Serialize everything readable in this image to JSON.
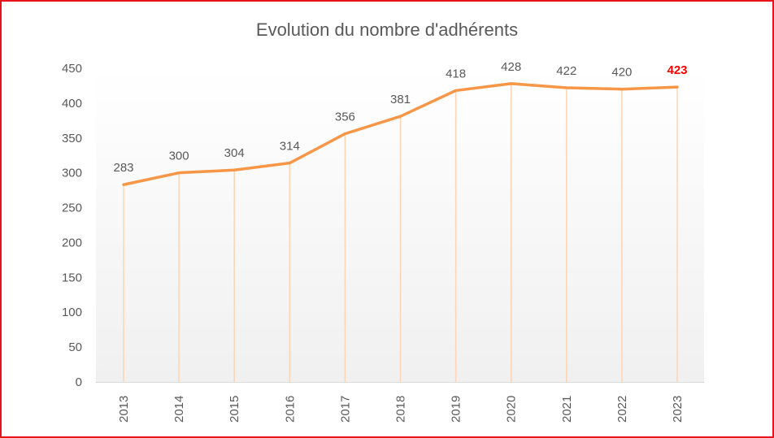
{
  "chart_data": {
    "type": "line",
    "title": "Evolution du nombre d'adhérents",
    "xlabel": "",
    "ylabel": "",
    "categories": [
      "2013",
      "2014",
      "2015",
      "2016",
      "2017",
      "2018",
      "2019",
      "2020",
      "2021",
      "2022",
      "2023"
    ],
    "values": [
      283,
      300,
      304,
      314,
      356,
      381,
      418,
      428,
      422,
      420,
      423
    ],
    "ylim": [
      0,
      450
    ],
    "yticks": [
      "0",
      "50",
      "100",
      "150",
      "200",
      "250",
      "300",
      "350",
      "400",
      "450"
    ],
    "grid": false,
    "drop_lines": true,
    "line_color": "#f79646",
    "drop_line_color": "#fbd5b5",
    "label_color": "#595959",
    "highlight_label_color": "#ff0000",
    "highlight_index": 10
  }
}
